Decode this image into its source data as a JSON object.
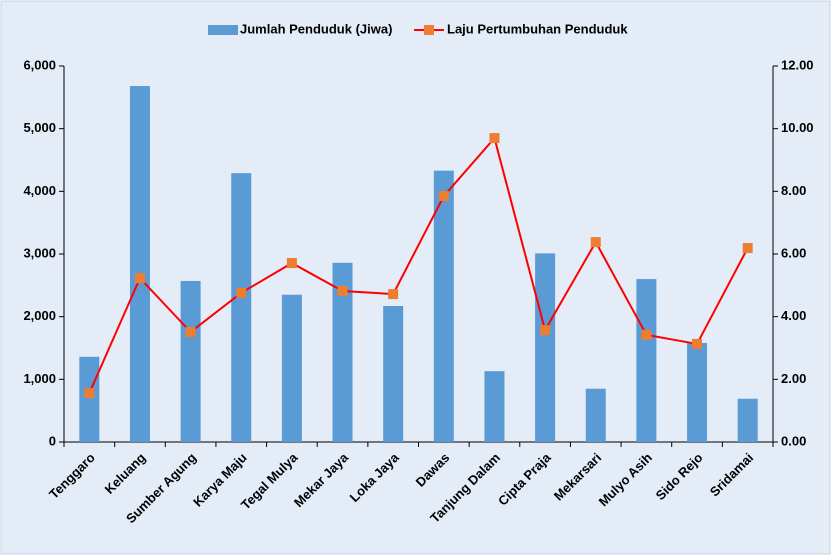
{
  "chart_data": {
    "type": "bar_line",
    "categories": [
      "Tenggaro",
      "Keluang",
      "Sumber Agung",
      "Karya Maju",
      "Tegal Mulya",
      "Mekar Jaya",
      "Loka Jaya",
      "Dawas",
      "Tanjung Dalam",
      "Cipta Praja",
      "Mekarsari",
      "Mulyo Asih",
      "Sido Rejo",
      "Sridamai"
    ],
    "series": [
      {
        "name": "Jumlah Penduduk (Jiwa)",
        "type": "bar",
        "color": "#5b9bd5",
        "values": [
          1360,
          5680,
          2570,
          4290,
          2350,
          2860,
          2170,
          4330,
          1130,
          3010,
          850,
          2600,
          1580,
          690
        ]
      },
      {
        "name": "Laju Pertumbuhan Penduduk",
        "type": "line",
        "axis": "y2",
        "color": "#ff0000",
        "marker_color": "#ed7d31",
        "values": [
          1.56,
          5.23,
          3.51,
          4.76,
          5.71,
          4.82,
          4.72,
          7.85,
          9.7,
          3.57,
          6.38,
          3.42,
          3.13,
          6.19
        ]
      }
    ],
    "ylim": [
      0,
      6000
    ],
    "yticks": [
      0,
      {
        "value": 1000,
        "label": "1,000"
      },
      {
        "value": 2000,
        "label": "2,000"
      },
      {
        "value": 3000,
        "label": "3,000"
      },
      {
        "value": 4000,
        "label": "4,000"
      },
      {
        "value": 5000,
        "label": "5,000"
      },
      {
        "value": 6000,
        "label": "6,000"
      }
    ],
    "y2lim": [
      0,
      12
    ],
    "y2ticks": [
      {
        "value": 0,
        "label": "0.00"
      },
      {
        "value": 2,
        "label": "2.00"
      },
      {
        "value": 4,
        "label": "4.00"
      },
      {
        "value": 6,
        "label": "6.00"
      },
      {
        "value": 8,
        "label": "8.00"
      },
      {
        "value": 10,
        "label": "10.00"
      },
      {
        "value": 12,
        "label": "12.00"
      }
    ],
    "legend": "top"
  }
}
